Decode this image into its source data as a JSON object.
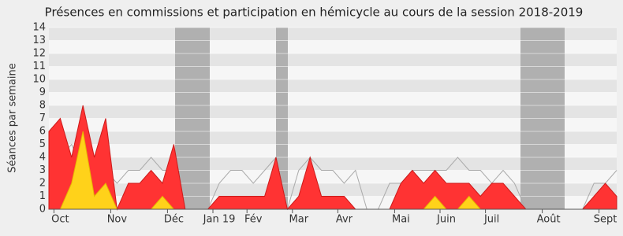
{
  "chart_data": {
    "type": "area",
    "title": "Présences en commissions et participation en hémicycle au cours de la session 2018-2019",
    "y_label": "Séances par semaine",
    "categories": [
      null,
      "Oct",
      null,
      null,
      null,
      null,
      "Nov",
      null,
      null,
      null,
      null,
      "Déc",
      null,
      null,
      null,
      "Jan 19",
      null,
      null,
      "Fév",
      null,
      null,
      null,
      "Mar",
      null,
      null,
      null,
      "Avr",
      null,
      null,
      null,
      null,
      "Mai",
      null,
      null,
      null,
      "Juin",
      null,
      null,
      null,
      "Juil",
      null,
      null,
      null,
      null,
      "Août",
      null,
      null,
      null,
      null,
      "Sept",
      null
    ],
    "series": [
      {
        "color": "#aaaaaa",
        "style": "line",
        "values": [
          5,
          4,
          5,
          3,
          3,
          3,
          2,
          3,
          3,
          4,
          3,
          3,
          0,
          0,
          0,
          2,
          3,
          3,
          2,
          3,
          4,
          0,
          3,
          4,
          3,
          3,
          2,
          3,
          0,
          0,
          2,
          2,
          3,
          3,
          3,
          3,
          4,
          3,
          3,
          2,
          3,
          2,
          0,
          0,
          0,
          0,
          0,
          0,
          2,
          2,
          3
        ]
      },
      {
        "color": "#ff3333",
        "style": "area",
        "values": [
          6,
          7,
          4,
          8,
          4,
          7,
          0,
          2,
          2,
          3,
          2,
          5,
          0,
          0,
          0,
          1,
          1,
          1,
          1,
          1,
          4,
          0,
          1,
          4,
          1,
          1,
          1,
          0,
          0,
          0,
          0,
          2,
          3,
          2,
          3,
          2,
          2,
          2,
          1,
          2,
          2,
          1,
          0,
          0,
          0,
          0,
          0,
          0,
          1,
          2,
          1
        ]
      },
      {
        "color": "#ffd21a",
        "style": "area",
        "values": [
          0,
          0,
          2,
          6,
          1,
          2,
          0,
          0,
          0,
          0,
          1,
          0,
          0,
          0,
          0,
          0,
          0,
          0,
          0,
          0,
          0,
          0,
          0,
          0,
          0,
          0,
          0,
          0,
          0,
          0,
          0,
          0,
          0,
          0,
          1,
          0,
          0,
          1,
          0,
          0,
          0,
          0,
          0,
          0,
          0,
          0,
          0,
          0,
          0,
          0,
          0
        ]
      }
    ],
    "ylim": [
      0,
      14
    ],
    "yticks": [
      0,
      1,
      2,
      3,
      4,
      5,
      6,
      7,
      8,
      9,
      10,
      11,
      12,
      13,
      14
    ],
    "grid": true
  }
}
